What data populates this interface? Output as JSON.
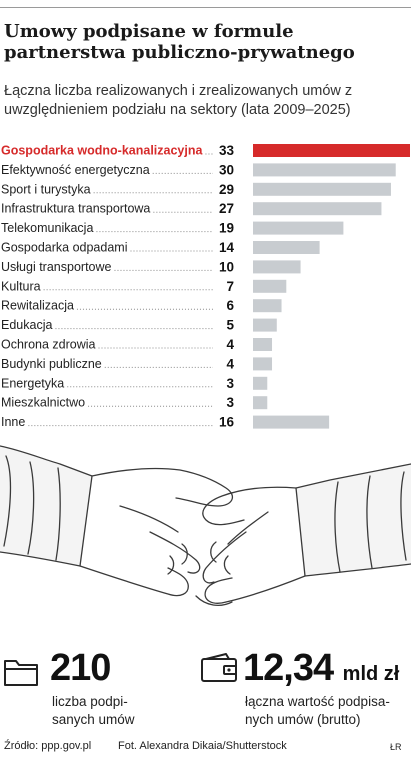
{
  "header": {
    "title": "Umowy podpisane w formule partnerstwa publiczno-prywatnego",
    "subtitle": "Łączna liczba realizowanych i zrealizowanych umów z uwzględnieniem podziału na sektory (lata 2009–2025)"
  },
  "chart_data": {
    "type": "bar",
    "orientation": "horizontal",
    "categories": [
      "Gospodarka wodno-kanalizacyjna",
      "Efektywność energetyczna",
      "Sport i turystyka",
      "Infrastruktura transportowa",
      "Telekomunikacja",
      "Gospodarka odpadami",
      "Usługi transportowe",
      "Kultura",
      "Rewitalizacja",
      "Edukacja",
      "Ochrona zdrowia",
      "Budynki publiczne",
      "Energetyka",
      "Mieszkalnictwo",
      "Inne"
    ],
    "values": [
      33,
      30,
      29,
      27,
      19,
      14,
      10,
      7,
      6,
      5,
      4,
      4,
      3,
      3,
      16
    ],
    "xlim": [
      0,
      33
    ],
    "highlight_index": 0,
    "colors": {
      "highlight": "#d62a2a",
      "bar": "#c8ccd0",
      "label": "#222222",
      "leader": "#8a8a8a"
    }
  },
  "stats": {
    "contracts": {
      "value": "210",
      "label_line1": "liczba podpi-",
      "label_line2": "sanych umów",
      "icon": "folder-icon"
    },
    "worth": {
      "value": "12,34",
      "unit": "mld zł",
      "label_line1": "łączna wartość podpisa-",
      "label_line2": "nych umów (brutto)",
      "icon": "wallet-icon"
    }
  },
  "footer": {
    "source": "Źródło: ppp.gov.pl",
    "photo": "Fot. Alexandra Dikaia/Shutterstock",
    "signature": "ŁR"
  }
}
